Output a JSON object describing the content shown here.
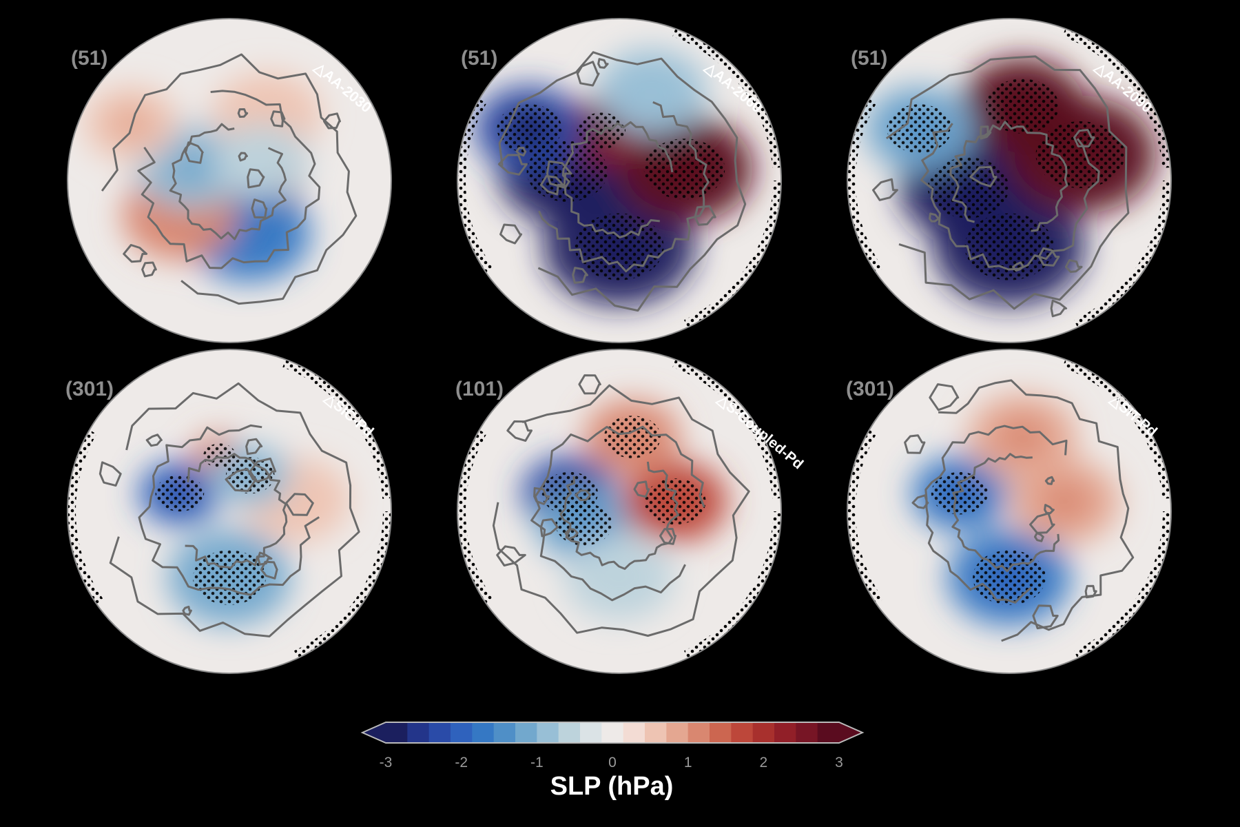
{
  "chart_data": {
    "type": "heatmap",
    "description_type": "polar-stereographic map panels",
    "panels": [
      {
        "count": "(51)",
        "label": "△AA-2030",
        "stippled": false,
        "blobs": [
          {
            "lon": 100,
            "lat": 85,
            "value": 2.2,
            "spread": 0.45
          },
          {
            "lon": 160,
            "lat": 60,
            "value": -1.6,
            "spread": 0.45
          },
          {
            "lon": 235,
            "lat": 58,
            "value": 1.0,
            "spread": 0.42
          },
          {
            "lon": 290,
            "lat": 68,
            "value": -0.9,
            "spread": 0.4
          },
          {
            "lon": 300,
            "lat": 30,
            "value": 0.7,
            "spread": 0.35
          },
          {
            "lon": 30,
            "lat": 50,
            "value": 0.6,
            "spread": 0.4
          },
          {
            "lon": 60,
            "lat": 70,
            "value": -0.5,
            "spread": 0.35
          }
        ]
      },
      {
        "count": "(51)",
        "label": "△AA-2060",
        "stippled": true,
        "blobs": [
          {
            "lon": 180,
            "lat": 55,
            "value": -3.2,
            "spread": 0.55
          },
          {
            "lon": 280,
            "lat": 62,
            "value": -3.0,
            "spread": 0.5
          },
          {
            "lon": 80,
            "lat": 55,
            "value": 3.0,
            "spread": 0.5
          },
          {
            "lon": 340,
            "lat": 62,
            "value": 2.4,
            "spread": 0.3
          },
          {
            "lon": 300,
            "lat": 35,
            "value": -2.4,
            "spread": 0.4
          },
          {
            "lon": 20,
            "lat": 40,
            "value": -0.8,
            "spread": 0.4
          }
        ]
      },
      {
        "count": "(51)",
        "label": "△AA-2090",
        "stippled": true,
        "blobs": [
          {
            "lon": 180,
            "lat": 55,
            "value": -3.4,
            "spread": 0.55
          },
          {
            "lon": 260,
            "lat": 68,
            "value": -3.0,
            "spread": 0.5
          },
          {
            "lon": 70,
            "lat": 50,
            "value": 3.4,
            "spread": 0.55
          },
          {
            "lon": 10,
            "lat": 50,
            "value": 3.0,
            "spread": 0.45
          },
          {
            "lon": 300,
            "lat": 35,
            "value": -1.2,
            "spread": 0.4
          }
        ]
      },
      {
        "count": "(301)",
        "label": "△SIC-Pd",
        "stippled": true,
        "blobs": [
          {
            "lon": 180,
            "lat": 55,
            "value": -1.1,
            "spread": 0.45
          },
          {
            "lon": 290,
            "lat": 62,
            "value": -2.0,
            "spread": 0.3
          },
          {
            "lon": 350,
            "lat": 60,
            "value": 1.2,
            "spread": 0.2
          },
          {
            "lon": 80,
            "lat": 55,
            "value": 0.6,
            "spread": 0.4
          },
          {
            "lon": 30,
            "lat": 68,
            "value": -1.0,
            "spread": 0.3
          }
        ]
      },
      {
        "count": "(101)",
        "label": "△S-Coupled-Pd",
        "stippled": true,
        "blobs": [
          {
            "lon": 290,
            "lat": 62,
            "value": -2.2,
            "spread": 0.35
          },
          {
            "lon": 250,
            "lat": 70,
            "value": -1.2,
            "spread": 0.35
          },
          {
            "lon": 80,
            "lat": 60,
            "value": 1.6,
            "spread": 0.38
          },
          {
            "lon": 10,
            "lat": 50,
            "value": 1.0,
            "spread": 0.35
          },
          {
            "lon": 180,
            "lat": 55,
            "value": -0.6,
            "spread": 0.4
          }
        ]
      },
      {
        "count": "(301)",
        "label": "△SIT-Pd",
        "stippled": true,
        "blobs": [
          {
            "lon": 180,
            "lat": 55,
            "value": -1.8,
            "spread": 0.45
          },
          {
            "lon": 290,
            "lat": 62,
            "value": -1.8,
            "spread": 0.35
          },
          {
            "lon": 80,
            "lat": 60,
            "value": 0.9,
            "spread": 0.4
          },
          {
            "lon": 10,
            "lat": 50,
            "value": 0.9,
            "spread": 0.4
          }
        ]
      }
    ],
    "colorbar": {
      "title": "SLP (hPa)",
      "ticks": [
        "-3",
        "-2",
        "-1",
        "0",
        "1",
        "2",
        "3"
      ],
      "min": -3,
      "max": 3,
      "colors": [
        "#1b1f5e",
        "#23358a",
        "#2a4ba8",
        "#2f62bd",
        "#3578c4",
        "#4f8fc7",
        "#72a8cd",
        "#98bfd6",
        "#bdd3dc",
        "#dbe3e6",
        "#eeeae8",
        "#f3dcd4",
        "#eec4b3",
        "#e4a791",
        "#d98770",
        "#cc6650",
        "#bd473a",
        "#a8302d",
        "#911f28",
        "#771525",
        "#5a0c1f"
      ]
    },
    "stipple_note": "dots mark statistically significant regions"
  }
}
